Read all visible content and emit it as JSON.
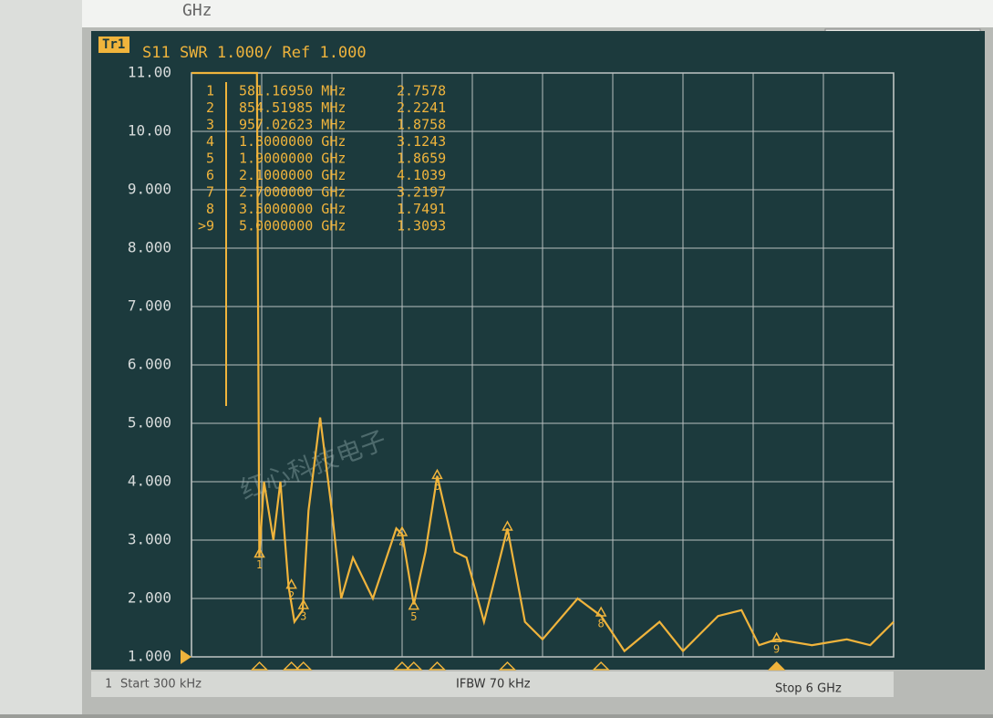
{
  "top_field": "GHz",
  "watermark": "红心科技电子",
  "chart_data": {
    "type": "line",
    "trace": "Tr1",
    "title": "S11 SWR 1.000/ Ref 1.000",
    "color": "#f0b43c",
    "grid": true,
    "xlim": [
      0.0003,
      6
    ],
    "ylim": [
      1,
      11
    ],
    "yticks": [
      {
        "value": 1,
        "label": "1.000"
      },
      {
        "value": 2,
        "label": "2.000"
      },
      {
        "value": 3,
        "label": "3.000"
      },
      {
        "value": 4,
        "label": "4.000"
      },
      {
        "value": 5,
        "label": "5.000"
      },
      {
        "value": 6,
        "label": "6.000"
      },
      {
        "value": 7,
        "label": "7.000"
      },
      {
        "value": 8,
        "label": "8.000"
      },
      {
        "value": 9,
        "label": "9.000"
      },
      {
        "value": 10,
        "label": "10.00"
      },
      {
        "value": 11,
        "label": "11.00"
      }
    ],
    "x": [
      0.0003,
      0.5,
      0.56,
      0.58,
      0.62,
      0.7,
      0.76,
      0.83,
      0.88,
      0.95,
      1.0,
      1.1,
      1.2,
      1.28,
      1.38,
      1.55,
      1.75,
      1.8,
      1.9,
      2.0,
      2.1,
      2.25,
      2.35,
      2.5,
      2.7,
      2.85,
      3.0,
      3.3,
      3.5,
      3.7,
      4.0,
      4.2,
      4.5,
      4.7,
      4.85,
      5.0,
      5.3,
      5.6,
      5.8,
      6.0
    ],
    "values": [
      11,
      11,
      11,
      2.7,
      4.0,
      3.0,
      4.0,
      2.2,
      1.6,
      1.8,
      3.5,
      5.1,
      3.5,
      2.0,
      2.7,
      2.0,
      3.2,
      3.1,
      1.9,
      2.8,
      4.1,
      2.8,
      2.7,
      1.6,
      3.2,
      1.6,
      1.3,
      2.0,
      1.7,
      1.1,
      1.6,
      1.1,
      1.7,
      1.8,
      1.2,
      1.3,
      1.2,
      1.3,
      1.2,
      1.6
    ],
    "markers": [
      {
        "table_id": "1",
        "flag": "1",
        "x": 0.5811695,
        "x_label": "581.16950 MHz",
        "value": 2.7578
      },
      {
        "table_id": "2",
        "flag": "2",
        "x": 0.85451985,
        "x_label": "854.51985 MHz",
        "value": 2.2241
      },
      {
        "table_id": "3",
        "flag": "3",
        "x": 0.95702623,
        "x_label": "957.02623 MHz",
        "value": 1.8758
      },
      {
        "table_id": "4",
        "flag": "4",
        "x": 1.8,
        "x_label": "1.8000000 GHz",
        "value": 3.1243
      },
      {
        "table_id": "5",
        "flag": "5",
        "x": 1.9,
        "x_label": "1.9000000 GHz",
        "value": 1.8659
      },
      {
        "table_id": "6",
        "flag": "6",
        "x": 2.1,
        "x_label": "2.1000000 GHz",
        "value": 4.1039
      },
      {
        "table_id": "7",
        "flag": "7",
        "x": 2.7,
        "x_label": "2.7000000 GHz",
        "value": 3.2197
      },
      {
        "table_id": "8",
        "flag": "8",
        "x": 3.5,
        "x_label": "3.5000000 GHz",
        "value": 1.7491
      },
      {
        "table_id": ">9",
        "flag": "9",
        "x": 5.0,
        "x_label": "5.0000000 GHz",
        "value": 1.3093
      }
    ],
    "footer": {
      "channel": "1",
      "start": "Start 300 kHz",
      "ifbw": "IFBW 70 kHz",
      "stop": "Stop 6 GHz"
    }
  }
}
